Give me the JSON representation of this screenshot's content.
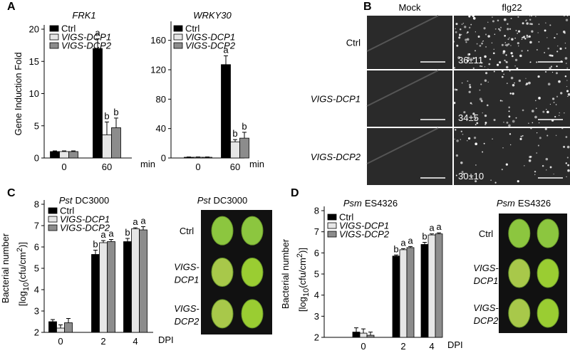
{
  "panel_letters": [
    "A",
    "B",
    "C",
    "D"
  ],
  "chart_data": [
    {
      "type": "bar",
      "title": "FRK1",
      "y_label": "Gene Induction Fold",
      "x_label": "min",
      "categories": [
        "0",
        "60"
      ],
      "ylim": [
        0,
        20
      ],
      "yticks": [
        0,
        5,
        10,
        15,
        20
      ],
      "series": [
        {
          "name": "Ctrl",
          "color": "#000000",
          "values": [
            1,
            17
          ],
          "errors": [
            0.1,
            1.5
          ],
          "letters": [
            null,
            "a"
          ]
        },
        {
          "name": "VIGS-DCP1",
          "color": "#e6e6e6",
          "values": [
            1,
            3.6
          ],
          "errors": [
            0.1,
            2
          ],
          "letters": [
            null,
            "b"
          ]
        },
        {
          "name": "VIGS-DCP2",
          "color": "#8c8c8c",
          "values": [
            1,
            4.7
          ],
          "errors": [
            0.1,
            1.5
          ],
          "letters": [
            null,
            "b"
          ]
        }
      ]
    },
    {
      "type": "bar",
      "title": "WRKY30",
      "x_label": "min",
      "categories": [
        "0",
        "60"
      ],
      "ylim": [
        0,
        180
      ],
      "yticks": [
        0,
        40,
        80,
        120,
        160
      ],
      "series": [
        {
          "name": "Ctrl",
          "color": "#000000",
          "values": [
            1,
            127
          ],
          "errors": [
            0.5,
            12
          ],
          "letters": [
            null,
            "a"
          ]
        },
        {
          "name": "VIGS-DCP1",
          "color": "#e6e6e6",
          "values": [
            1,
            22
          ],
          "errors": [
            0.5,
            3
          ],
          "letters": [
            null,
            "b"
          ]
        },
        {
          "name": "VIGS-DCP2",
          "color": "#8c8c8c",
          "values": [
            1,
            27
          ],
          "errors": [
            0.5,
            8
          ],
          "letters": [
            null,
            "b"
          ]
        }
      ]
    },
    {
      "type": "bar",
      "title": [
        "Pst",
        "DC3000"
      ],
      "y_label": [
        "Bacterial number",
        "[log",
        "10",
        "(cfu/cm",
        "2",
        ")]"
      ],
      "x_label": "DPI",
      "categories": [
        "0",
        "2",
        "4"
      ],
      "ylim": [
        2,
        8
      ],
      "yticks": [
        2,
        3,
        4,
        5,
        6,
        7,
        8
      ],
      "series": [
        {
          "name": "Ctrl",
          "color": "#000000",
          "values": [
            2.5,
            5.65,
            6.25
          ],
          "errors": [
            0.1,
            0.2,
            0.15
          ],
          "letters": [
            null,
            "b",
            "b"
          ]
        },
        {
          "name": "VIGS-DCP1",
          "color": "#e6e6e6",
          "values": [
            2.2,
            6.2,
            6.85
          ],
          "errors": [
            0.15,
            0.1,
            0.05
          ],
          "letters": [
            null,
            "a",
            "a"
          ]
        },
        {
          "name": "VIGS-DCP2",
          "color": "#8c8c8c",
          "values": [
            2.45,
            6.25,
            6.8
          ],
          "errors": [
            0.2,
            0.1,
            0.15
          ],
          "letters": [
            null,
            "a",
            "a"
          ]
        }
      ]
    },
    {
      "type": "bar",
      "title": [
        "Psm",
        "ES4326"
      ],
      "y_label": [
        "Bacterial number",
        "[log",
        "10",
        "(cfu/cm",
        "2",
        ")]"
      ],
      "x_label": "DPI",
      "categories": [
        "0",
        "2",
        "4"
      ],
      "ylim": [
        2,
        8
      ],
      "yticks": [
        2,
        3,
        4,
        5,
        6,
        7,
        8
      ],
      "series": [
        {
          "name": "Ctrl",
          "color": "#000000",
          "values": [
            2.25,
            5.85,
            6.4
          ],
          "errors": [
            0.2,
            0.05,
            0.1
          ],
          "letters": [
            null,
            "b",
            "b"
          ]
        },
        {
          "name": "VIGS-DCP1",
          "color": "#e6e6e6",
          "values": [
            2.2,
            6.15,
            6.85
          ],
          "errors": [
            0.2,
            0.05,
            0.05
          ],
          "letters": [
            null,
            "a",
            "a"
          ]
        },
        {
          "name": "VIGS-DCP2",
          "color": "#8c8c8c",
          "values": [
            2.1,
            6.25,
            6.9
          ],
          "errors": [
            0.15,
            0.05,
            0.05
          ],
          "letters": [
            null,
            "a",
            "a"
          ]
        }
      ]
    }
  ],
  "microscopy": {
    "columns": [
      "Mock",
      "flg22"
    ],
    "rows": [
      "Ctrl",
      "VIGS-DCP1",
      "VIGS-DCP2"
    ],
    "counts": [
      "36±11",
      "34±5",
      "30±10"
    ]
  },
  "photos": [
    {
      "title": [
        "Pst",
        "DC3000"
      ],
      "rows": [
        [
          "Ctrl"
        ],
        [
          "VIGS-",
          "DCP1"
        ],
        [
          "VIGS-",
          "DCP2"
        ]
      ]
    },
    {
      "title": [
        "Psm",
        "ES4326"
      ],
      "rows": [
        [
          "Ctrl"
        ],
        [
          "VIGS-",
          "DCP1"
        ],
        [
          "VIGS-",
          "DCP2"
        ]
      ]
    }
  ]
}
